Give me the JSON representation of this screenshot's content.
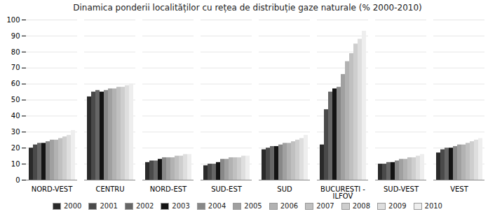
{
  "chart_data": {
    "type": "bar",
    "title": "Dinamica ponderii localităților cu rețea de distribuție gaze naturale (% 2000-2010)",
    "categories": [
      "NORD-VEST",
      "CENTRU",
      "NORD-EST",
      "SUD-EST",
      "SUD",
      "BUCUREȘTI -\nILFOV",
      "SUD-VEST",
      "VEST"
    ],
    "series": [
      {
        "name": "2000",
        "color": "#2a2a2a",
        "values": [
          20,
          52,
          11,
          9,
          19,
          22,
          10,
          17
        ]
      },
      {
        "name": "2001",
        "color": "#4a4a4a",
        "values": [
          22,
          55,
          12,
          10,
          20,
          44,
          10,
          19
        ]
      },
      {
        "name": "2002",
        "color": "#666666",
        "values": [
          23,
          56,
          12,
          10,
          21,
          55,
          11,
          20
        ]
      },
      {
        "name": "2003",
        "color": "#141414",
        "values": [
          23,
          55,
          13,
          11,
          21,
          57,
          11,
          20
        ]
      },
      {
        "name": "2004",
        "color": "#888888",
        "values": [
          24,
          56,
          14,
          13,
          22,
          58,
          12,
          21
        ]
      },
      {
        "name": "2005",
        "color": "#a0a0a0",
        "values": [
          25,
          57,
          14,
          13,
          23,
          66,
          13,
          22
        ]
      },
      {
        "name": "2006",
        "color": "#b2b2b2",
        "values": [
          25,
          57,
          14,
          14,
          23,
          74,
          13,
          22
        ]
      },
      {
        "name": "2007",
        "color": "#c0c0c0",
        "values": [
          26,
          58,
          15,
          14,
          24,
          79,
          14,
          23
        ]
      },
      {
        "name": "2008",
        "color": "#cecece",
        "values": [
          27,
          58,
          15,
          14,
          25,
          85,
          14,
          24
        ]
      },
      {
        "name": "2009",
        "color": "#dedede",
        "values": [
          28,
          59,
          16,
          15,
          26,
          88,
          15,
          25
        ]
      },
      {
        "name": "2010",
        "color": "#eeeeee",
        "values": [
          31,
          60,
          16,
          15,
          28,
          93,
          16,
          26
        ]
      }
    ],
    "ylim": [
      0,
      100
    ],
    "yticks": [
      0,
      10,
      20,
      30,
      40,
      50,
      60,
      70,
      80,
      90,
      100
    ],
    "grid": true,
    "legend": "bottom"
  }
}
